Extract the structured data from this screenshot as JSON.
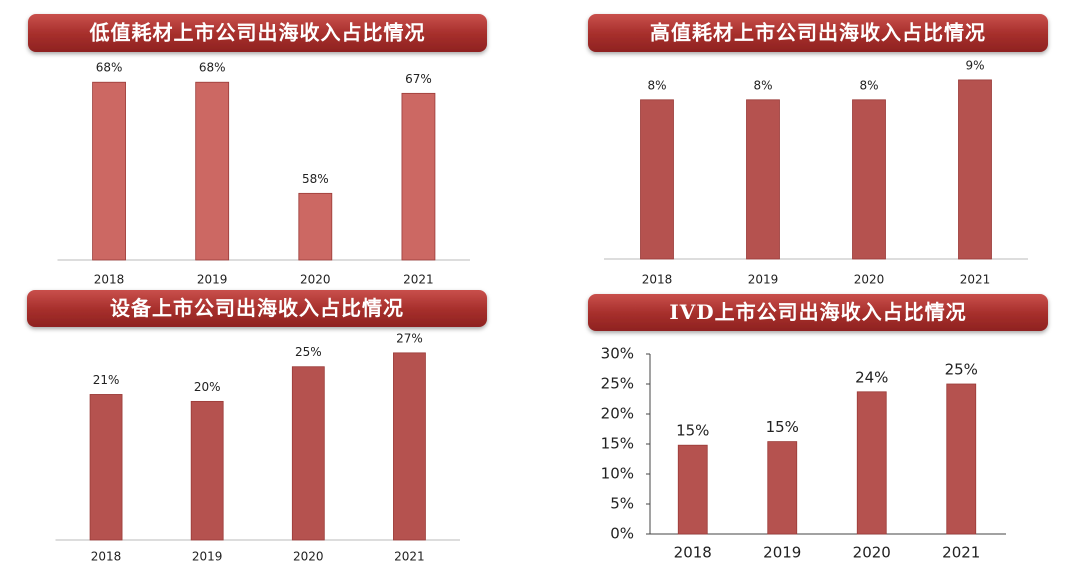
{
  "chart_data": [
    {
      "type": "bar",
      "title": "低值耗材上市公司出海收入占比情况",
      "categories": [
        "2018",
        "2019",
        "2020",
        "2021"
      ],
      "values": [
        68,
        68,
        58,
        67
      ],
      "value_labels": [
        "68%",
        "68%",
        "58%",
        "67%"
      ],
      "color": "#cc6863",
      "ylim": [
        52,
        70
      ]
    },
    {
      "type": "bar",
      "title": "高值耗材上市公司出海收入占比情况",
      "categories": [
        "2018",
        "2019",
        "2020",
        "2021"
      ],
      "values": [
        8,
        8,
        8,
        9
      ],
      "value_labels": [
        "8%",
        "8%",
        "8%",
        "9%"
      ],
      "color": "#b5524f",
      "ylim": [
        0,
        10
      ]
    },
    {
      "type": "bar",
      "title": "设备上市公司出海收入占比情况",
      "categories": [
        "2018",
        "2019",
        "2020",
        "2021"
      ],
      "values": [
        21,
        20,
        25,
        27
      ],
      "value_labels": [
        "21%",
        "20%",
        "25%",
        "27%"
      ],
      "color": "#b5524f",
      "ylim": [
        0,
        29
      ]
    },
    {
      "type": "bar",
      "title": "IVD上市公司出海收入占比情况",
      "categories": [
        "2018",
        "2019",
        "2020",
        "2021"
      ],
      "values": [
        14.8,
        15.4,
        23.7,
        25.0
      ],
      "value_labels": [
        "15%",
        "15%",
        "24%",
        "25%"
      ],
      "color": "#b5524f",
      "ylim": [
        0,
        30
      ],
      "yticks": [
        {
          "value": 0,
          "label": "0%"
        },
        {
          "value": 5,
          "label": "5%"
        },
        {
          "value": 10,
          "label": "10%"
        },
        {
          "value": 15,
          "label": "15%"
        },
        {
          "value": 20,
          "label": "20%"
        },
        {
          "value": 25,
          "label": "25%"
        },
        {
          "value": 30,
          "label": "30%"
        }
      ]
    }
  ]
}
